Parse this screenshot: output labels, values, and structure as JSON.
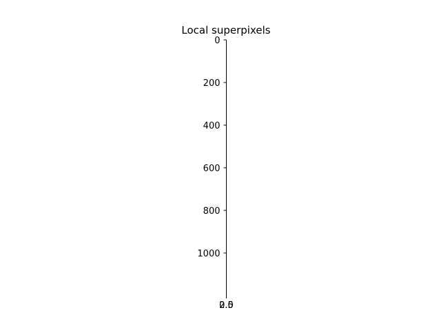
{
  "chart_data": {
    "type": "image",
    "title": "Local superpixels",
    "xlim": [
      0,
      2.5
    ],
    "xticks": [
      {
        "value": 0,
        "label": "0.0"
      },
      {
        "value": 2.5,
        "label": "2.5"
      }
    ],
    "ylim": [
      1200,
      0
    ],
    "yticks": [
      0,
      200,
      400,
      600,
      800,
      1000
    ]
  }
}
